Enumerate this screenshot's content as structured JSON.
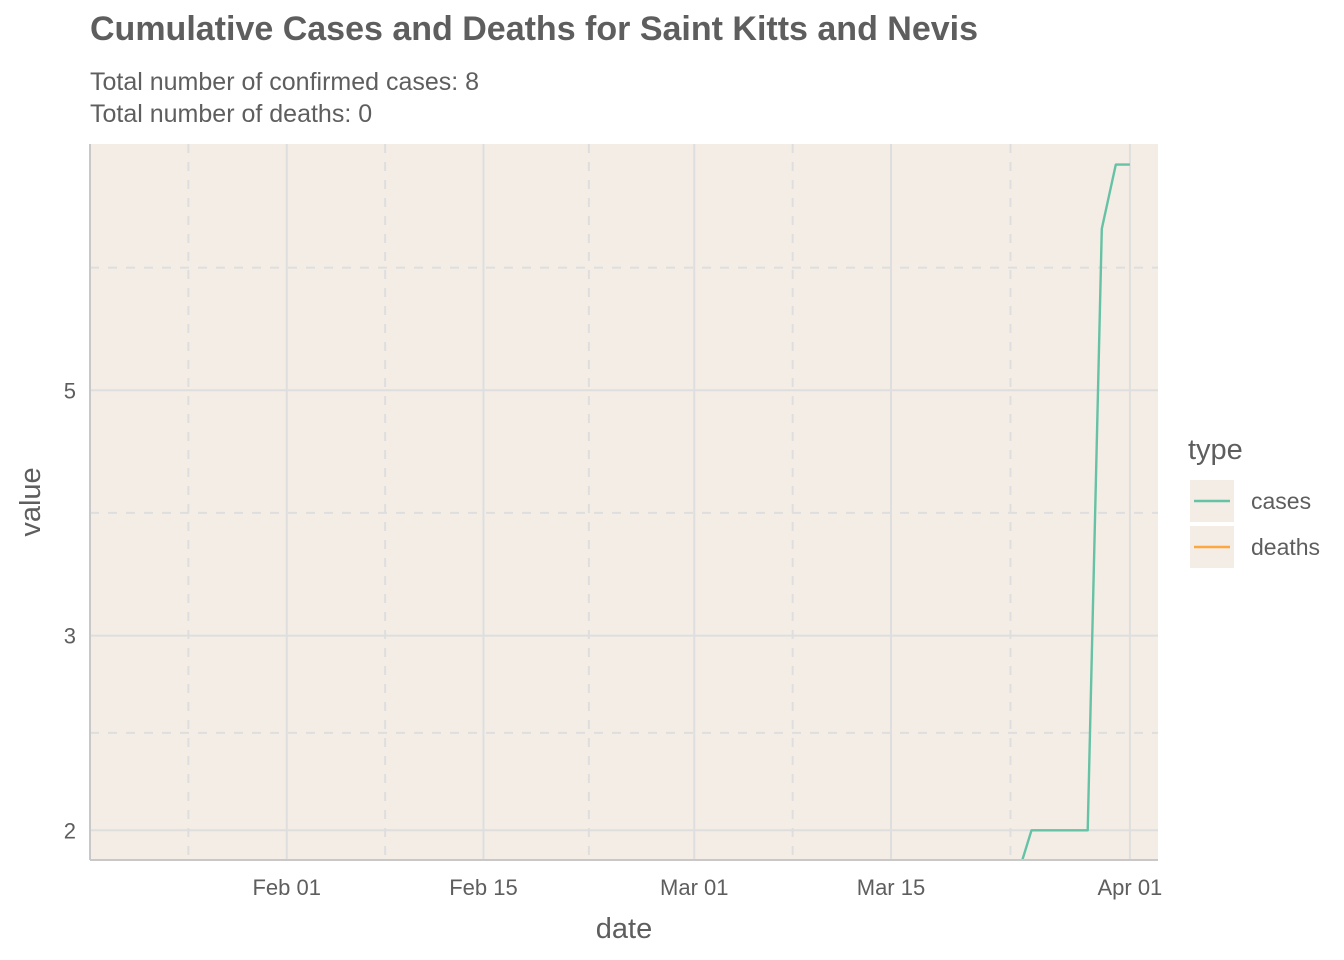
{
  "chart_data": {
    "type": "line",
    "title": "Cumulative Cases and Deaths for Saint Kitts and Nevis",
    "subtitle_lines": [
      "Total number of confirmed cases: 8",
      "Total number of deaths: 0"
    ],
    "xlabel": "date",
    "ylabel": "value",
    "x_scale": "date",
    "y_scale": "log",
    "xlim": [
      "2020-01-18",
      "2020-04-03"
    ],
    "ylim": [
      1.88,
      8.35
    ],
    "x_ticks": [
      {
        "date": "2020-02-01",
        "label": "Feb 01"
      },
      {
        "date": "2020-02-15",
        "label": "Feb 15"
      },
      {
        "date": "2020-03-01",
        "label": "Mar 01"
      },
      {
        "date": "2020-03-15",
        "label": "Mar 15"
      },
      {
        "date": "2020-04-01",
        "label": "Apr 01"
      }
    ],
    "y_ticks": [
      {
        "value": 2,
        "label": "2"
      },
      {
        "value": 3,
        "label": "3"
      },
      {
        "value": 5,
        "label": "5"
      }
    ],
    "grid": true,
    "legend": {
      "title": "type",
      "position": "right",
      "entries": [
        "cases",
        "deaths"
      ]
    },
    "series": [
      {
        "name": "cases",
        "color": "#66c2a5",
        "points": [
          {
            "x": "2020-03-24",
            "y": 1.82
          },
          {
            "x": "2020-03-25",
            "y": 2
          },
          {
            "x": "2020-03-29",
            "y": 2
          },
          {
            "x": "2020-03-30",
            "y": 7
          },
          {
            "x": "2020-03-31",
            "y": 8
          },
          {
            "x": "2020-04-01",
            "y": 8
          }
        ]
      },
      {
        "name": "deaths",
        "color": "#fca73f",
        "points": []
      }
    ],
    "panel_background": "#f4ede6",
    "grid_color": "#dedede"
  }
}
